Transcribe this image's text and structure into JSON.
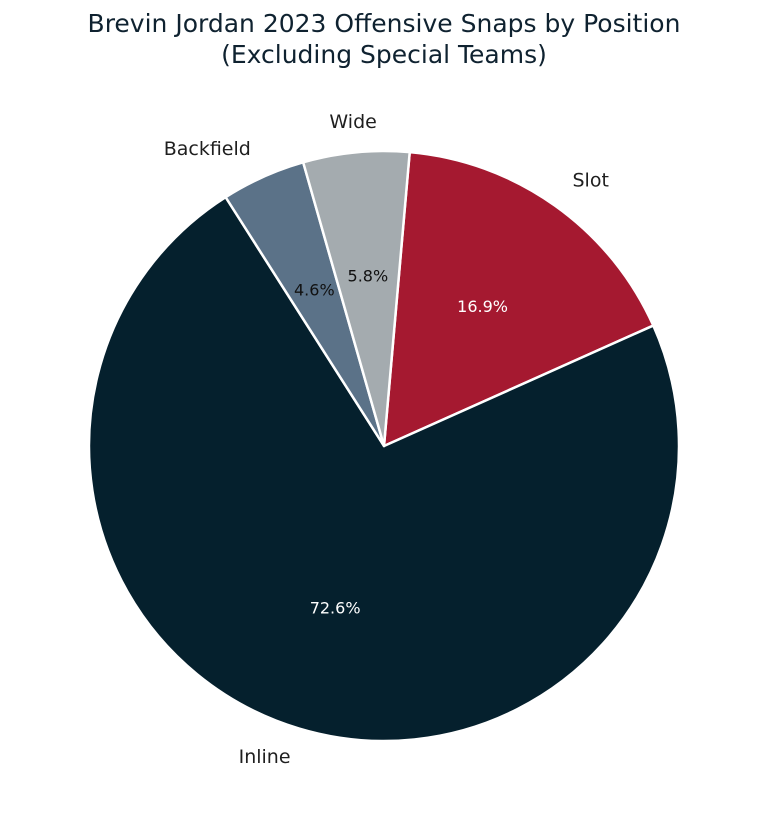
{
  "chart_data": {
    "type": "pie",
    "title_lines": [
      "Brevin Jordan 2023 Offensive Snaps by Position",
      "(Excluding Special Teams)"
    ],
    "slices": [
      {
        "label": "Slot",
        "value": 16.9,
        "display": "16.9%",
        "color": "#a51930",
        "text_color": "#ffffff"
      },
      {
        "label": "Inline",
        "value": 72.6,
        "display": "72.6%",
        "color": "#05202d",
        "text_color": "#ffffff"
      },
      {
        "label": "Backfield",
        "value": 4.6,
        "display": "4.6%",
        "color": "#5b7288",
        "text_color": "#111111"
      },
      {
        "label": "Wide",
        "value": 5.8,
        "display": "5.8%",
        "color": "#a4abaf",
        "text_color": "#111111"
      }
    ],
    "start_angle_deg": 5,
    "direction": "clockwise"
  }
}
